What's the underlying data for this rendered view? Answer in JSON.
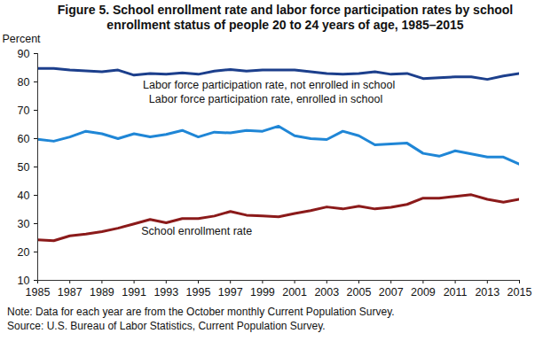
{
  "chart_data": {
    "type": "line",
    "title": "Figure 5. School enrollment rate and labor force participation rates by school enrollment status of people 20 to 24 years of age, 1985–2015",
    "y_label": "Percent",
    "notes": [
      "Note: Data for each year are from the October monthly Current Population Survey.",
      "Source: U.S. Bureau of Labor Statistics, Current Population Survey."
    ],
    "x": [
      1985,
      1986,
      1987,
      1988,
      1989,
      1990,
      1991,
      1992,
      1993,
      1994,
      1995,
      1996,
      1997,
      1998,
      1999,
      2000,
      2001,
      2002,
      2003,
      2004,
      2005,
      2006,
      2007,
      2008,
      2009,
      2010,
      2011,
      2012,
      2013,
      2014,
      2015
    ],
    "series": [
      {
        "name": "Labor force participation rate, not enrolled in school",
        "color": "#1c3f8c",
        "values": [
          84.8,
          84.8,
          84.2,
          83.9,
          83.6,
          84.2,
          82.4,
          83.0,
          82.7,
          83.2,
          82.7,
          83.8,
          84.4,
          83.8,
          84.2,
          84.2,
          84.2,
          83.6,
          83.0,
          82.7,
          83.0,
          83.6,
          82.7,
          83.0,
          81.2,
          81.5,
          81.8,
          81.8,
          80.9,
          82.1,
          83.0
        ]
      },
      {
        "name": "Labor force participation rate, enrolled in school",
        "color": "#1f86d6",
        "values": [
          59.8,
          59.1,
          60.6,
          62.6,
          61.7,
          60.0,
          61.7,
          60.6,
          61.5,
          62.9,
          60.6,
          62.3,
          62.0,
          62.9,
          62.6,
          64.4,
          61.0,
          60.0,
          59.7,
          62.6,
          61.0,
          57.8,
          58.1,
          58.4,
          54.8,
          53.8,
          55.7,
          54.6,
          53.5,
          53.5,
          51.0
        ]
      },
      {
        "name": "School enrollment rate",
        "color": "#8b1a1a",
        "values": [
          24.3,
          24.0,
          25.7,
          26.3,
          27.2,
          28.4,
          29.9,
          31.5,
          30.3,
          31.8,
          31.8,
          32.7,
          34.3,
          33.0,
          32.7,
          32.4,
          33.6,
          34.6,
          35.9,
          35.2,
          36.2,
          35.2,
          35.8,
          36.8,
          39.0,
          39.0,
          39.6,
          40.2,
          38.6,
          37.6,
          38.6
        ]
      }
    ],
    "annotations": [
      {
        "text": "Labor force participation rate, not enrolled in school",
        "x": 1999.4,
        "y": 79
      },
      {
        "text": "Labor force participation rate, enrolled in school",
        "x": 1999.2,
        "y": 74
      },
      {
        "text": "School enrollment rate",
        "x": 1994.9,
        "y": 27.2
      }
    ],
    "xlim": [
      1985,
      2015
    ],
    "xticks": [
      1985,
      1987,
      1989,
      1991,
      1993,
      1995,
      1997,
      1999,
      2001,
      2003,
      2005,
      2007,
      2009,
      2011,
      2013,
      2015
    ],
    "ylim": [
      10,
      90
    ],
    "yticks": [
      10,
      20,
      30,
      40,
      50,
      60,
      70,
      80,
      90
    ],
    "grid": false
  }
}
